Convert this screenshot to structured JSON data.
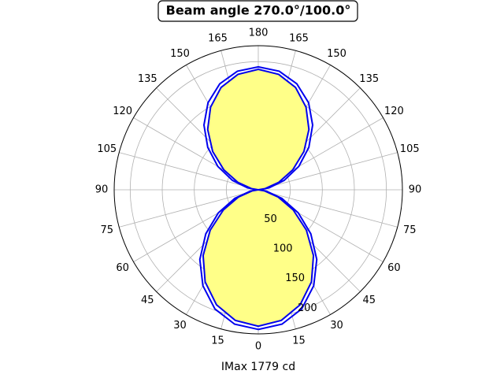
{
  "chart_data": {
    "type": "polar",
    "title": "Beam angle 270.0°/100.0°",
    "xlabel": "IMax 1779 cd",
    "theta": [
      0,
      10,
      20,
      30,
      40,
      50,
      60,
      70,
      80,
      90,
      100,
      110,
      120,
      130,
      140,
      150,
      160,
      170,
      180,
      190,
      200,
      210,
      220,
      230,
      240,
      250,
      260,
      270,
      280,
      290,
      300,
      310,
      320,
      330,
      340,
      350
    ],
    "series": [
      {
        "color": "#0000ee",
        "fill": null,
        "values": [
          218,
          213,
          198,
          173,
          142,
          107,
          72,
          39,
          13,
          0,
          17,
          43,
          73,
          103,
          132,
          157,
          176,
          188,
          192,
          188,
          176,
          157,
          132,
          103,
          73,
          43,
          17,
          0,
          13,
          39,
          72,
          107,
          142,
          173,
          198,
          213
        ]
      },
      {
        "color": "#0000ee",
        "fill": "#ffff88",
        "values": [
          213,
          207,
          191,
          166,
          134,
          98,
          63,
          33,
          10,
          0,
          11,
          34,
          62,
          93,
          123,
          149,
          170,
          183,
          188,
          183,
          170,
          149,
          123,
          93,
          62,
          34,
          11,
          0,
          10,
          33,
          63,
          98,
          134,
          166,
          191,
          207
        ]
      }
    ],
    "rlim": [
      0,
      225
    ],
    "rticks": [
      50,
      100,
      150,
      200
    ],
    "thetaticks": [
      0,
      15,
      30,
      45,
      60,
      75,
      90,
      105,
      120,
      135,
      150,
      165,
      180,
      {
        "value": 195,
        "label": "165"
      },
      {
        "value": 210,
        "label": "150"
      },
      {
        "value": 225,
        "label": "135"
      },
      {
        "value": 240,
        "label": "120"
      },
      {
        "value": 255,
        "label": "105"
      },
      {
        "value": 270,
        "label": "90"
      },
      {
        "value": 285,
        "label": "75"
      },
      {
        "value": 300,
        "label": "60"
      },
      {
        "value": 315,
        "label": "45"
      },
      {
        "value": 330,
        "label": "30"
      },
      {
        "value": 345,
        "label": "15"
      }
    ],
    "grid": true
  }
}
